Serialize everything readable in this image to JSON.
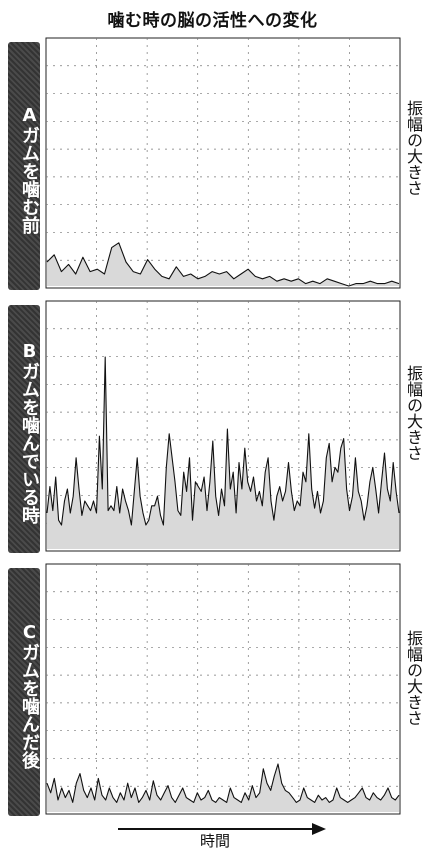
{
  "title": "噛む時の脳の活性への変化",
  "time_label": "時間",
  "colors": {
    "line": "#111111",
    "fill": "#d9d9d9",
    "grid": "#777777",
    "tag_bg": "#3c3c3c"
  },
  "chart_data": [
    {
      "type": "area",
      "panel_label": "Aガムを噛む前",
      "ylabel": "振幅の大きさ",
      "xlabel": "時間",
      "ylim": [
        0,
        10
      ],
      "grid": true,
      "values": [
        1.0,
        1.3,
        0.6,
        0.9,
        0.5,
        1.2,
        0.6,
        0.7,
        0.5,
        1.6,
        1.8,
        1.0,
        0.6,
        0.5,
        1.1,
        0.7,
        0.4,
        0.3,
        0.8,
        0.4,
        0.5,
        0.3,
        0.4,
        0.6,
        0.5,
        0.6,
        0.3,
        0.5,
        0.7,
        0.4,
        0.3,
        0.4,
        0.2,
        0.3,
        0.2,
        0.3,
        0.1,
        0.2,
        0.1,
        0.3,
        0.2,
        0.1,
        0.0,
        0.1,
        0.1,
        0.2,
        0.1,
        0.1,
        0.2,
        0.1
      ]
    },
    {
      "type": "area",
      "panel_label": "Bガムを噛んでいる時",
      "ylabel": "振幅の大きさ",
      "xlabel": "時間",
      "ylim": [
        0,
        10
      ],
      "grid": true,
      "values": [
        1.5,
        2.6,
        1.6,
        3.0,
        1.2,
        1.0,
        2.0,
        2.5,
        1.5,
        2.2,
        3.8,
        2.5,
        1.4,
        2.0,
        1.8,
        1.6,
        2.0,
        1.5,
        4.7,
        2.5,
        8.0,
        1.6,
        1.8,
        1.6,
        2.6,
        1.5,
        2.5,
        2.0,
        1.6,
        1.0,
        2.4,
        3.8,
        2.2,
        1.5,
        1.0,
        1.2,
        1.8,
        1.8,
        2.2,
        1.4,
        1.0,
        3.4,
        4.8,
        3.8,
        2.8,
        1.6,
        1.4,
        3.2,
        2.4,
        3.8,
        1.2,
        2.8,
        2.6,
        2.4,
        3.0,
        1.6,
        2.8,
        4.5,
        2.2,
        1.4,
        2.5,
        1.8,
        5.0,
        2.5,
        3.2,
        1.5,
        3.6,
        2.5,
        4.2,
        2.8,
        2.4,
        3.0,
        2.0,
        2.4,
        1.8,
        3.2,
        3.8,
        2.0,
        1.2,
        2.2,
        2.6,
        2.0,
        2.4,
        3.6,
        2.4,
        1.6,
        2.0,
        1.8,
        3.2,
        2.8,
        4.8,
        2.5,
        1.7,
        2.4,
        1.5,
        2.0,
        3.8,
        4.4,
        2.8,
        3.4,
        3.2,
        4.2,
        4.6,
        2.5,
        1.6,
        2.2,
        3.8,
        2.4,
        2.0,
        1.2,
        1.8,
        2.8,
        3.4,
        2.5,
        1.5,
        2.8,
        4.0,
        2.5,
        2.0,
        3.6,
        2.4,
        1.5
      ]
    },
    {
      "type": "area",
      "panel_label": "Cガムを噛んだ後",
      "ylabel": "振幅の大きさ",
      "xlabel": "時間",
      "ylim": [
        0,
        10
      ],
      "grid": true,
      "values": [
        1.2,
        0.8,
        1.4,
        0.5,
        1.0,
        0.6,
        0.9,
        0.4,
        1.2,
        1.6,
        0.9,
        0.6,
        1.0,
        0.5,
        1.4,
        0.7,
        0.5,
        1.0,
        0.6,
        0.4,
        0.8,
        0.5,
        1.2,
        0.6,
        1.0,
        0.4,
        0.6,
        0.9,
        0.5,
        1.3,
        0.7,
        0.5,
        0.8,
        1.1,
        0.6,
        0.4,
        0.7,
        1.0,
        0.6,
        0.5,
        0.4,
        0.8,
        0.5,
        0.6,
        0.9,
        0.5,
        0.4,
        0.6,
        0.5,
        0.4,
        1.0,
        0.6,
        0.5,
        0.4,
        0.8,
        0.5,
        1.1,
        0.6,
        0.8,
        1.8,
        1.2,
        0.9,
        1.5,
        2.0,
        1.2,
        0.9,
        0.8,
        0.6,
        0.4,
        0.5,
        1.0,
        0.6,
        0.5,
        0.4,
        0.7,
        0.5,
        0.6,
        0.4,
        0.5,
        1.0,
        0.6,
        0.5,
        0.4,
        0.5,
        0.6,
        0.8,
        1.0,
        0.6,
        0.5,
        0.8,
        0.6,
        0.5,
        0.7,
        1.0,
        0.6,
        0.5,
        0.7
      ]
    }
  ]
}
